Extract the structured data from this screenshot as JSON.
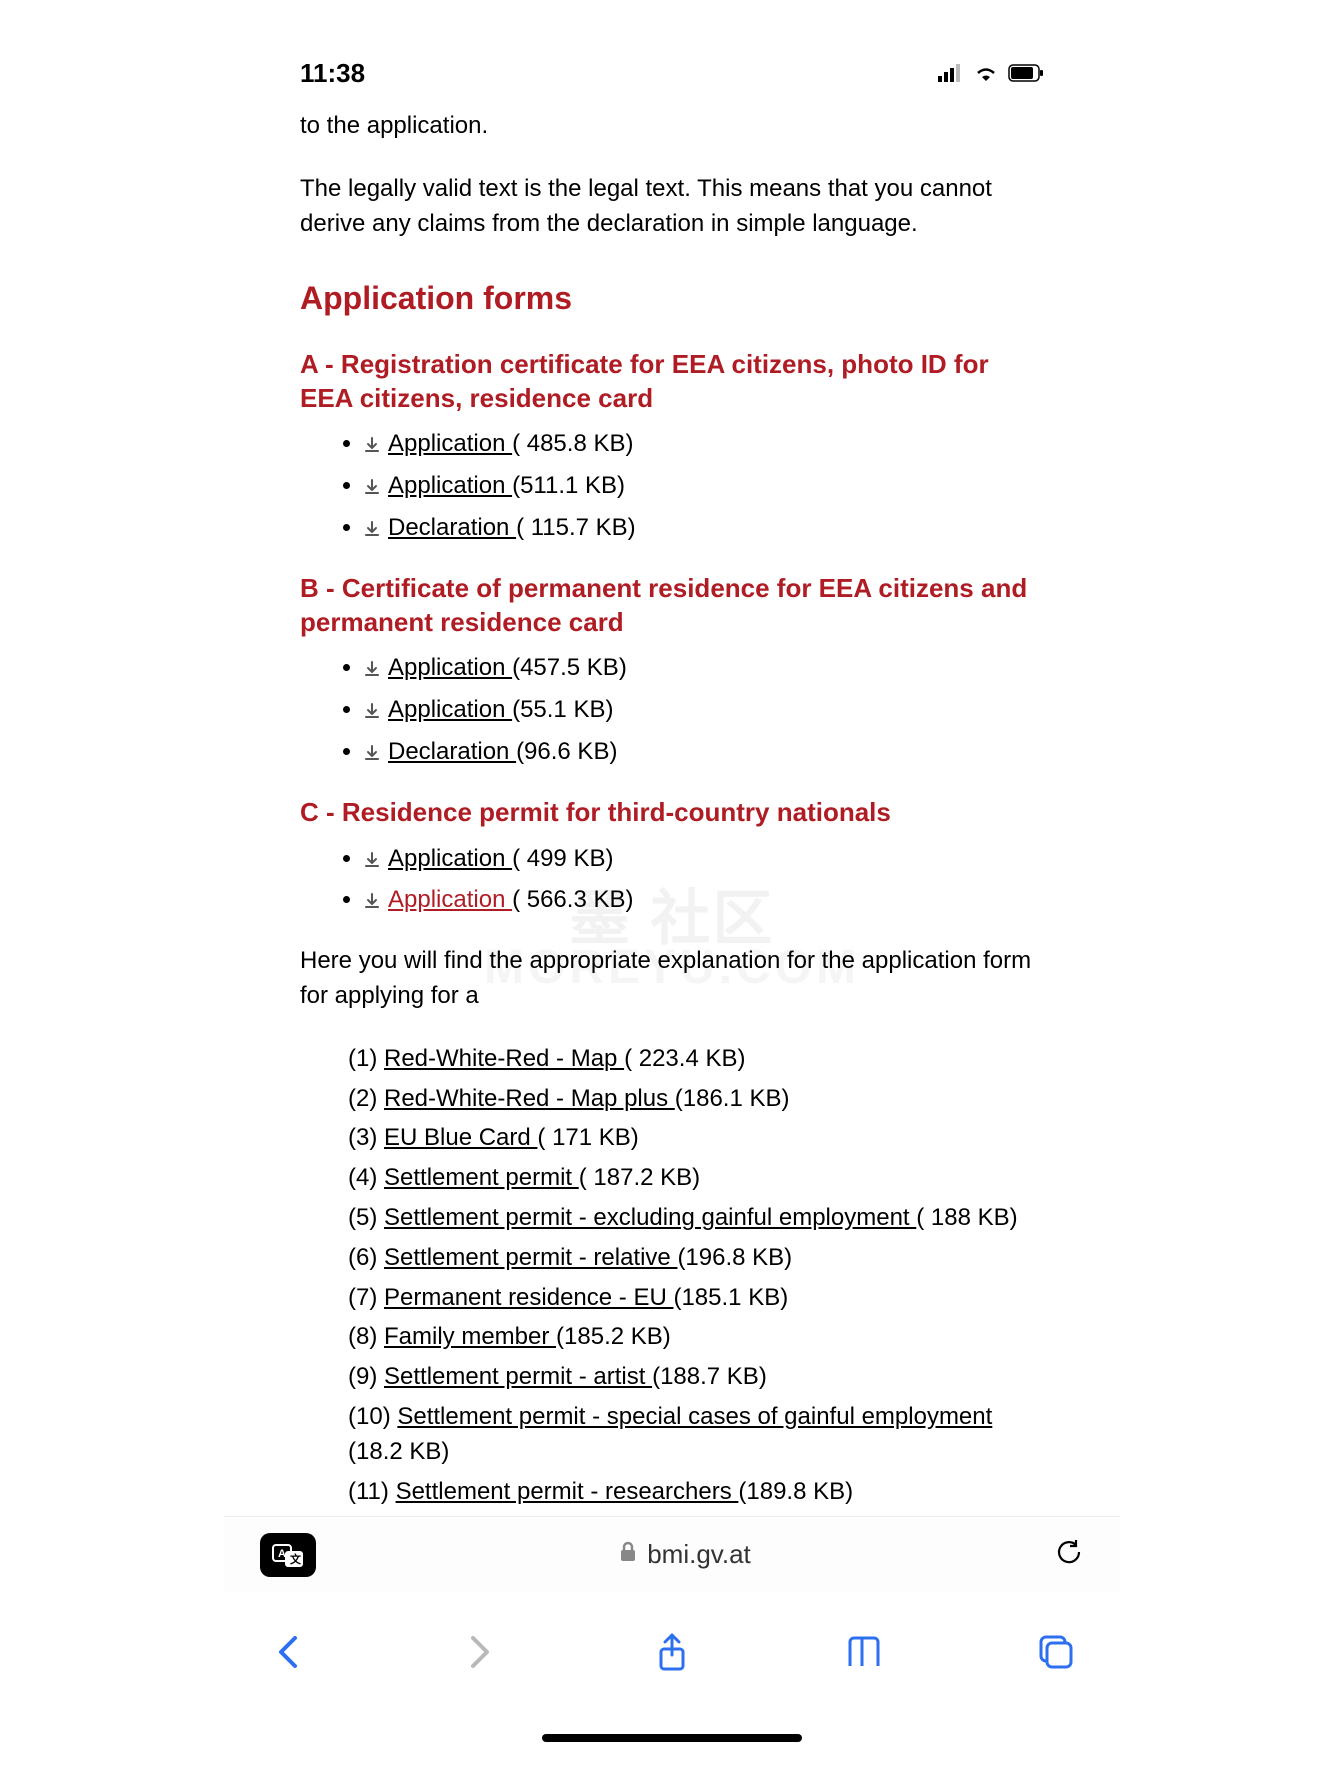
{
  "status": {
    "time": "11:38"
  },
  "intro": {
    "line1": "to the application.",
    "line2": "The legally valid text is the legal text. This means that you cannot derive any claims from the declaration in simple language."
  },
  "heading": "Application forms",
  "sections": {
    "a": {
      "title": "A - Registration certificate for EEA citizens, photo ID for EEA citizens, residence card",
      "items": [
        {
          "label": "Application ",
          "size": "( 485.8 KB)"
        },
        {
          "label": "Application ",
          "size": "(511.1 KB)"
        },
        {
          "label": "Declaration ",
          "size": "( 115.7 KB)"
        }
      ]
    },
    "b": {
      "title": "B - Certificate of permanent residence for EEA citizens and permanent residence card",
      "items": [
        {
          "label": "Application ",
          "size": "(457.5 KB)"
        },
        {
          "label": "Application ",
          "size": "(55.1 KB)"
        },
        {
          "label": "Declaration ",
          "size": "(96.6 KB)"
        }
      ]
    },
    "c": {
      "title": "C - Residence permit for third-country nationals",
      "items": [
        {
          "label": "Application ",
          "size": "( 499 KB)",
          "active": false
        },
        {
          "label": "Application ",
          "size": "( 566.3 KB)",
          "active": true
        }
      ]
    }
  },
  "explain": "Here you will find the appropriate explanation for the application form for applying for a",
  "numbered": [
    {
      "n": "(1) ",
      "label": "Red-White-Red - Map ",
      "size": "( 223.4 KB)"
    },
    {
      "n": "(2) ",
      "label": "Red-White-Red - Map plus ",
      "size": "(186.1 KB)"
    },
    {
      "n": "(3) ",
      "label": "EU Blue Card ",
      "size": "( 171 KB)"
    },
    {
      "n": "(4) ",
      "label": "Settlement permit ",
      "size": "( 187.2 KB)"
    },
    {
      "n": "(5) ",
      "label": "Settlement permit - excluding gainful employment ",
      "size": "( 188 KB)"
    },
    {
      "n": "(6) ",
      "label": "Settlement permit - relative ",
      "size": "(196.8 KB)"
    },
    {
      "n": "(7) ",
      "label": "Permanent residence - EU ",
      "size": "(185.1 KB)"
    },
    {
      "n": "(8) ",
      "label": "Family member ",
      "size": "(185.2 KB)"
    },
    {
      "n": "(9) ",
      "label": "Settlement permit - artist ",
      "size": "(188.7 KB)"
    },
    {
      "n": "(10) ",
      "label": "Settlement permit - special cases of gainful employment ",
      "size": "(18.2 KB)"
    },
    {
      "n": "(11) ",
      "label": "Settlement permit - researchers ",
      "size": "(189.8 KB)"
    }
  ],
  "address": {
    "domain": "bmi.gv.at"
  },
  "colors": {
    "heading": "#b01c24",
    "link_active": "#b01c24",
    "toolbar_blue": "#2d6ff1",
    "toolbar_grey": "#b9b9b9"
  }
}
